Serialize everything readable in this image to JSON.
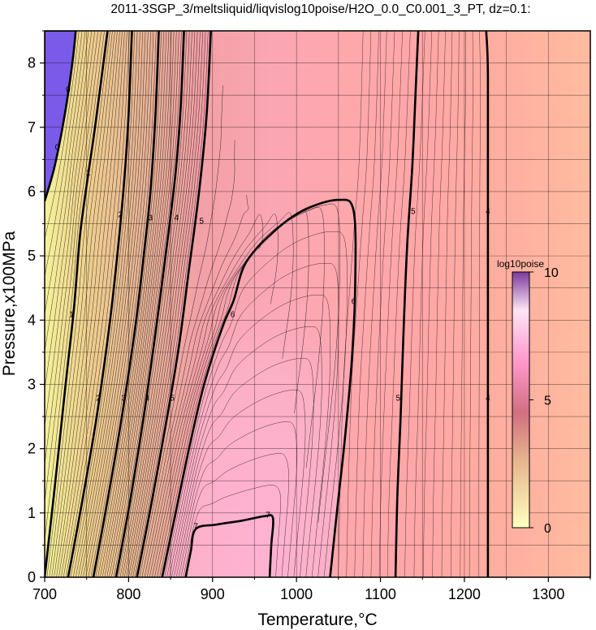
{
  "chart_data": {
    "type": "heatmap",
    "title": "2011-3SGP_3/meltsliquid/liqvislog10poise/H2O_0.0_C0.001_3_PT, dz=0.1:",
    "xlabel": "Temperature,°C",
    "ylabel": "Pressure,x100MPa",
    "xlim": [
      700,
      1350
    ],
    "ylim": [
      0,
      8.5
    ],
    "x_ticks": [
      "700",
      "800",
      "900",
      "1000",
      "1100",
      "1200",
      "1300"
    ],
    "y_ticks": [
      "0",
      "1",
      "2",
      "3",
      "4",
      "5",
      "6",
      "7",
      "8"
    ],
    "grid": true,
    "colorbar": {
      "title": "log10poise",
      "range": [
        0,
        10
      ],
      "ticks": [
        "0",
        "5",
        "10"
      ],
      "colors": [
        "#ffffc0",
        "#e8b890",
        "#d07080",
        "#ff99cc",
        "#ffe4f4",
        "#7a3a9a"
      ]
    },
    "region_colors": {
      "low": "#f2ee9c",
      "mid": "#ffa8a8",
      "high_pressure_peak": "#f4aac6",
      "hot_side": "#ffb4a0",
      "purple_corner": "#7a5ae8"
    },
    "bold_contours": [
      {
        "value": 0,
        "label": "0",
        "points": [
          [
            700,
            5.85
          ],
          [
            712,
            6.4
          ],
          [
            724,
            7.2
          ],
          [
            733,
            8.0
          ],
          [
            737,
            8.5
          ]
        ]
      },
      {
        "value": 1,
        "label": "1",
        "points": [
          [
            700,
            0.0
          ],
          [
            712,
            1.4
          ],
          [
            725,
            3.0
          ],
          [
            735,
            4.2
          ],
          [
            742,
            5.3
          ],
          [
            750,
            6.1
          ],
          [
            760,
            7.0
          ],
          [
            775,
            8.5
          ]
        ]
      },
      {
        "value": 2,
        "label": "2",
        "points": [
          [
            728,
            0.0
          ],
          [
            745,
            1.2
          ],
          [
            762,
            2.5
          ],
          [
            778,
            4.0
          ],
          [
            788,
            5.2
          ],
          [
            795,
            6.2
          ],
          [
            800,
            7.2
          ],
          [
            804,
            8.5
          ]
        ]
      },
      {
        "value": 3,
        "label": "3",
        "points": [
          [
            758,
            0.0
          ],
          [
            775,
            1.2
          ],
          [
            792,
            2.5
          ],
          [
            808,
            3.9
          ],
          [
            818,
            5.0
          ],
          [
            826,
            6.0
          ],
          [
            832,
            7.2
          ],
          [
            836,
            8.5
          ]
        ]
      },
      {
        "value": 4,
        "label": "4",
        "points": [
          [
            785,
            0.0
          ],
          [
            802,
            1.2
          ],
          [
            818,
            2.5
          ],
          [
            832,
            3.8
          ],
          [
            846,
            5.2
          ],
          [
            856,
            6.3
          ],
          [
            862,
            7.3
          ],
          [
            866,
            8.5
          ]
        ]
      },
      {
        "value": 5,
        "label": "5",
        "points": [
          [
            810,
            0.0
          ],
          [
            828,
            1.2
          ],
          [
            846,
            2.5
          ],
          [
            860,
            3.6
          ],
          [
            872,
            4.8
          ],
          [
            884,
            6.0
          ],
          [
            893,
            7.2
          ],
          [
            898,
            8.5
          ]
        ]
      },
      {
        "value": 6,
        "label": "6",
        "points": [
          [
            840,
            0.0
          ],
          [
            856,
            1.0
          ],
          [
            872,
            2.0
          ],
          [
            890,
            3.0
          ],
          [
            912,
            3.9
          ],
          [
            925,
            4.3
          ],
          [
            940,
            4.9
          ],
          [
            975,
            5.4
          ],
          [
            1010,
            5.72
          ],
          [
            1050,
            5.87
          ],
          [
            1068,
            5.7
          ],
          [
            1070,
            4.6
          ],
          [
            1066,
            3.4
          ],
          [
            1058,
            2.2
          ],
          [
            1048,
            1.0
          ],
          [
            1040,
            0.0
          ]
        ]
      },
      {
        "value": 7,
        "label": "7",
        "points": [
          [
            868,
            0.0
          ],
          [
            874,
            0.4
          ],
          [
            880,
            0.75
          ],
          [
            905,
            0.82
          ],
          [
            935,
            0.88
          ],
          [
            962,
            0.95
          ],
          [
            972,
            0.92
          ],
          [
            970,
            0.5
          ],
          [
            968,
            0.0
          ]
        ]
      },
      {
        "value": 5,
        "label": "5",
        "points": [
          [
            1118,
            0.0
          ],
          [
            1120,
            1.2
          ],
          [
            1124,
            2.5
          ],
          [
            1128,
            4.0
          ],
          [
            1132,
            5.2
          ],
          [
            1138,
            6.4
          ],
          [
            1142,
            7.6
          ],
          [
            1145,
            8.5
          ]
        ]
      },
      {
        "value": 4,
        "label": "4",
        "points": [
          [
            1228,
            0.0
          ],
          [
            1228,
            2.5
          ],
          [
            1228,
            5.5
          ],
          [
            1228,
            7.8
          ],
          [
            1226,
            8.5
          ]
        ]
      }
    ],
    "contour_labels": [
      {
        "text": "0",
        "x": 728,
        "y": 7.6
      },
      {
        "text": "0",
        "x": 715,
        "y": 6.7
      },
      {
        "text": "1",
        "x": 752,
        "y": 6.3
      },
      {
        "text": "1",
        "x": 732,
        "y": 4.1
      },
      {
        "text": "2",
        "x": 790,
        "y": 5.65
      },
      {
        "text": "2",
        "x": 764,
        "y": 2.8
      },
      {
        "text": "3",
        "x": 826,
        "y": 5.6
      },
      {
        "text": "3",
        "x": 794,
        "y": 2.8
      },
      {
        "text": "4",
        "x": 857,
        "y": 5.6
      },
      {
        "text": "4",
        "x": 822,
        "y": 2.8
      },
      {
        "text": "5",
        "x": 887,
        "y": 5.55
      },
      {
        "text": "5",
        "x": 852,
        "y": 2.8
      },
      {
        "text": "6",
        "x": 924,
        "y": 4.1
      },
      {
        "text": "6",
        "x": 1068,
        "y": 4.3
      },
      {
        "text": "7",
        "x": 880,
        "y": 0.8
      },
      {
        "text": "7",
        "x": 966,
        "y": 0.98
      },
      {
        "text": "5",
        "x": 1139,
        "y": 5.7
      },
      {
        "text": "5",
        "x": 1121,
        "y": 2.8
      },
      {
        "text": "4",
        "x": 1228,
        "y": 5.7
      },
      {
        "text": "4",
        "x": 1228,
        "y": 2.8
      }
    ]
  }
}
